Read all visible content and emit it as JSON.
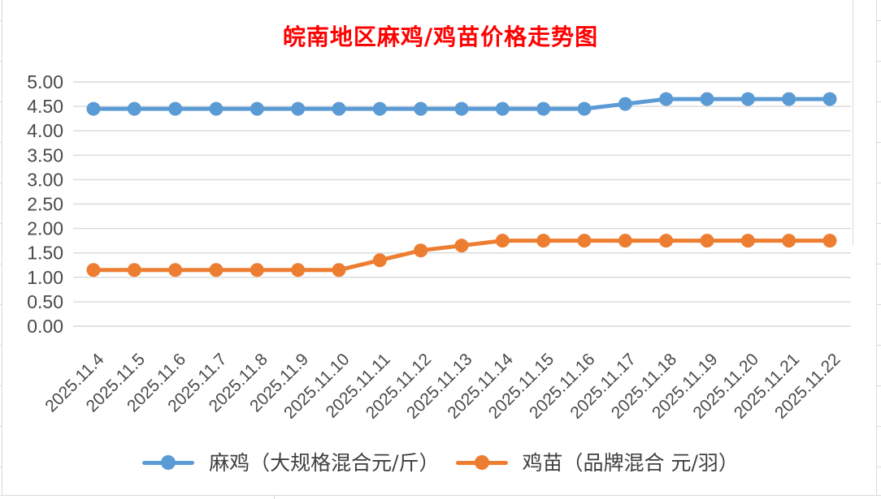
{
  "chart_data": {
    "type": "line",
    "title": "皖南地区麻鸡/鸡苗价格走势图",
    "title_color": "#ff0000",
    "categories": [
      "2025.11.4",
      "2025.11.5",
      "2025.11.6",
      "2025.11.7",
      "2025.11.8",
      "2025.11.9",
      "2025.11.10",
      "2025.11.11",
      "2025.11.12",
      "2025.11.13",
      "2025.11.14",
      "2025.11.15",
      "2025.11.16",
      "2025.11.17",
      "2025.11.18",
      "2025.11.19",
      "2025.11.20",
      "2025.11.21",
      "2025.11.22"
    ],
    "series": [
      {
        "name": "麻鸡（大规格混合元/斤）",
        "color": "#5B9BD5",
        "values": [
          4.45,
          4.45,
          4.45,
          4.45,
          4.45,
          4.45,
          4.45,
          4.45,
          4.45,
          4.45,
          4.45,
          4.45,
          4.45,
          4.55,
          4.65,
          4.65,
          4.65,
          4.65,
          4.65
        ]
      },
      {
        "name": "鸡苗（品牌混合 元/羽）",
        "color": "#ED7D31",
        "values": [
          1.15,
          1.15,
          1.15,
          1.15,
          1.15,
          1.15,
          1.15,
          1.35,
          1.55,
          1.65,
          1.75,
          1.75,
          1.75,
          1.75,
          1.75,
          1.75,
          1.75,
          1.75,
          1.75
        ]
      }
    ],
    "y_axis": {
      "min": 0,
      "max": 5,
      "step": 0.5,
      "tick_labels": [
        "0.00",
        "0.50",
        "1.00",
        "1.50",
        "2.00",
        "2.50",
        "3.00",
        "3.50",
        "4.00",
        "4.50",
        "5.00"
      ]
    },
    "grid": true,
    "legend_position": "bottom",
    "axis_text_color": "#4a4a4a",
    "gridline_color": "#d9d9d9"
  },
  "legend": {
    "items": [
      {
        "label": "麻鸡（大规格混合元/斤）"
      },
      {
        "label": "鸡苗（品牌混合 元/羽）"
      }
    ]
  }
}
